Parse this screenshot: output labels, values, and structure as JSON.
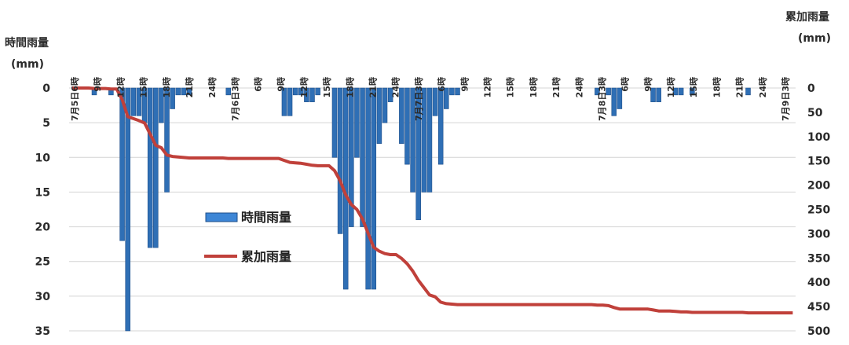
{
  "chart_data": {
    "type": "bar",
    "left_axis": {
      "title": "時間雨量",
      "unit": "(mm)",
      "ticks": [
        "0",
        "5",
        "10",
        "15",
        "20",
        "25",
        "30",
        "35"
      ],
      "range": [
        0,
        35
      ],
      "inverted": true
    },
    "right_axis": {
      "title": "累加雨量",
      "unit": "(mm)",
      "ticks": [
        "0",
        "50",
        "100",
        "150",
        "200",
        "250",
        "300",
        "350",
        "400",
        "450",
        "500"
      ],
      "range": [
        0,
        500
      ]
    },
    "grid": true,
    "legend": {
      "placement": "center-left"
    },
    "x_tick_labels": [
      "7月5日6時",
      "9時",
      "12時",
      "15時",
      "18時",
      "21時",
      "24時",
      "7月6日3時",
      "6時",
      "9時",
      "12時",
      "15時",
      "18時",
      "21時",
      "24時",
      "7月7日3時",
      "6時",
      "9時",
      "12時",
      "15時",
      "18時",
      "21時",
      "24時",
      "7月8日3時",
      "6時",
      "9時",
      "12時",
      "15時",
      "18時",
      "21時",
      "24時",
      "7月9日3時"
    ],
    "series": [
      {
        "name": "時間雨量",
        "kind": "bar",
        "axis": "left",
        "color": "#2f6fb5",
        "values": [
          0,
          0,
          0,
          0,
          1,
          0,
          0,
          1,
          0,
          22,
          35,
          4,
          4,
          5,
          23,
          23,
          5,
          15,
          3,
          1,
          1,
          1,
          0,
          0,
          0,
          0,
          0,
          0,
          1,
          0,
          0,
          0,
          0,
          0,
          0,
          0,
          0,
          0,
          4,
          4,
          1,
          1,
          2,
          2,
          1,
          0,
          0,
          10,
          21,
          29,
          20,
          10,
          20,
          29,
          29,
          8,
          5,
          2,
          0,
          8,
          11,
          15,
          19,
          15,
          15,
          4,
          11,
          3,
          1,
          1,
          0,
          0,
          0,
          0,
          0,
          0,
          0,
          0,
          0,
          0,
          0,
          0,
          0,
          0,
          0,
          0,
          0,
          0,
          0,
          0,
          0,
          0,
          0,
          0,
          1,
          0,
          1,
          4,
          3,
          0,
          0,
          0,
          0,
          0,
          2,
          2,
          0,
          0,
          1,
          1,
          0,
          1,
          0,
          0,
          0,
          0,
          0,
          0,
          0,
          0,
          0,
          1,
          0,
          0,
          0,
          0,
          0,
          0,
          0,
          0
        ]
      },
      {
        "name": "累加雨量",
        "kind": "line",
        "axis": "right",
        "color": "#c0403a",
        "values": [
          0,
          0,
          0,
          0,
          1,
          1,
          1,
          2,
          2,
          24,
          59,
          63,
          67,
          72,
          95,
          118,
          123,
          138,
          141,
          142,
          143,
          144,
          144,
          144,
          144,
          144,
          144,
          144,
          145,
          145,
          145,
          145,
          145,
          145,
          145,
          145,
          145,
          145,
          149,
          153,
          154,
          155,
          157,
          159,
          160,
          160,
          160,
          170,
          191,
          220,
          240,
          250,
          270,
          299,
          328,
          336,
          341,
          343,
          343,
          351,
          362,
          377,
          396,
          411,
          426,
          430,
          441,
          444,
          445,
          446,
          446,
          446,
          446,
          446,
          446,
          446,
          446,
          446,
          446,
          446,
          446,
          446,
          446,
          446,
          446,
          446,
          446,
          446,
          446,
          446,
          446,
          446,
          446,
          446,
          447,
          447,
          448,
          452,
          455,
          455,
          455,
          455,
          455,
          455,
          457,
          459,
          459,
          459,
          460,
          461,
          461,
          462,
          462,
          462,
          462,
          462,
          462,
          462,
          462,
          462,
          462,
          463,
          463,
          463,
          463,
          463,
          463,
          463,
          463,
          463
        ]
      }
    ]
  }
}
